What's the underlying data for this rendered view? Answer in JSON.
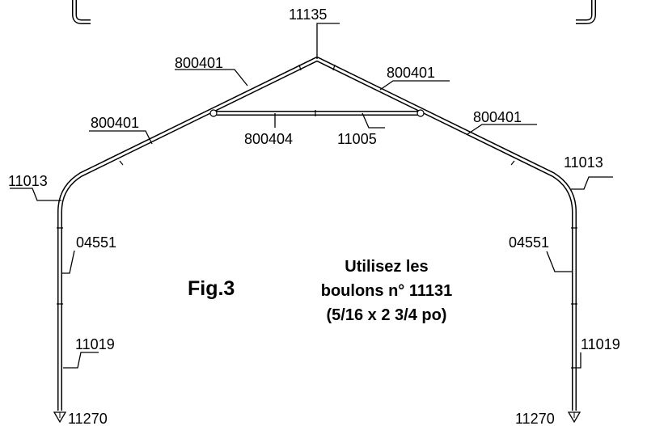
{
  "figure": {
    "title": "Fig.3",
    "note_line1": "Utilisez les",
    "note_line2": "boulons n° 11131",
    "note_line3": "(5/16 x 2 3/4 po)"
  },
  "parts": {
    "peak_connector": "11135",
    "rafter_upper_left": "800401",
    "rafter_upper_right": "800401",
    "rafter_lower_left": "800401",
    "rafter_lower_right": "800401",
    "cross_bar_left": "800404",
    "cross_bar_right": "11005",
    "elbow_left": "11013",
    "elbow_right": "11013",
    "leg_upper_left": "04551",
    "leg_upper_right": "04551",
    "leg_lower_left": "11019",
    "leg_lower_right": "11019",
    "foot_left": "11270",
    "foot_right": "11270"
  }
}
